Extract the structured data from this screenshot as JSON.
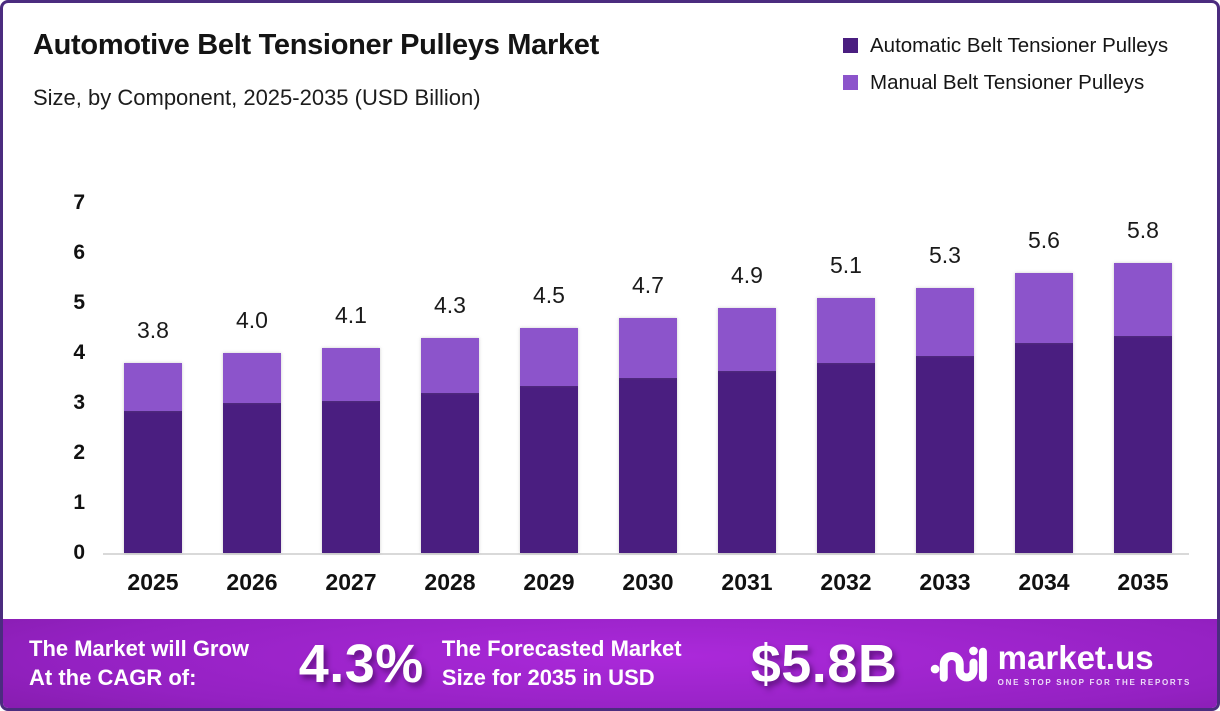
{
  "header": {
    "title": "Automotive Belt Tensioner Pulleys Market",
    "subtitle": "Size, by Component, 2025-2035 (USD Billion)"
  },
  "legend": {
    "items": [
      {
        "label": "Automatic Belt Tensioner Pulleys",
        "color": "#4A1E80"
      },
      {
        "label": "Manual Belt Tensioner Pulleys",
        "color": "#8C54CB"
      }
    ]
  },
  "chart_data": {
    "type": "bar",
    "stacked": true,
    "title": "Automotive Belt Tensioner Pulleys Market Size, by Component, 2025-2035 (USD Billion)",
    "categories": [
      "2025",
      "2026",
      "2027",
      "2028",
      "2029",
      "2030",
      "2031",
      "2032",
      "2033",
      "2034",
      "2035"
    ],
    "series": [
      {
        "name": "Automatic Belt Tensioner Pulleys",
        "color": "#4A1E80",
        "values": [
          2.85,
          3.0,
          3.05,
          3.2,
          3.35,
          3.5,
          3.65,
          3.8,
          3.95,
          4.2,
          4.35
        ]
      },
      {
        "name": "Manual Belt Tensioner Pulleys",
        "color": "#8C54CB",
        "values": [
          0.95,
          1.0,
          1.05,
          1.1,
          1.15,
          1.2,
          1.25,
          1.3,
          1.35,
          1.4,
          1.45
        ]
      }
    ],
    "total_labels": [
      "3.8",
      "4.0",
      "4.1",
      "4.3",
      "4.5",
      "4.7",
      "4.9",
      "5.1",
      "5.3",
      "5.6",
      "5.8"
    ],
    "ylim": [
      0,
      7
    ],
    "yticks": [
      "0",
      "1",
      "2",
      "3",
      "4",
      "5",
      "6",
      "7"
    ],
    "grid": false,
    "legend_position": "top-right"
  },
  "banner": {
    "left_line1": "The Market will Grow",
    "left_line2": "At the CAGR of:",
    "cagr_value": "4.3%",
    "mid_line1": "The Forecasted Market",
    "mid_line2": "Size for 2035 in USD",
    "size_value": "$5.8B",
    "logo_text": "market.us",
    "logo_tagline": "ONE STOP SHOP FOR THE REPORTS"
  }
}
